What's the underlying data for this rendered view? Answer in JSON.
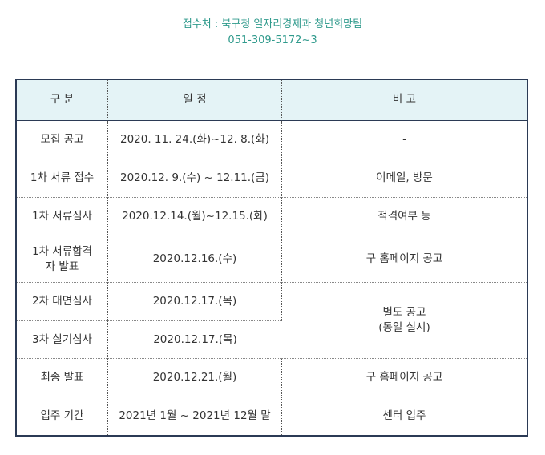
{
  "contact": {
    "office": "접수처 : 북구청 일자리경제과 청년희망팀",
    "phone": "051-309-5172~3"
  },
  "table": {
    "headers": [
      "구 분",
      "일 정",
      "비 고"
    ],
    "rows": [
      {
        "category": "모집 공고",
        "schedule": "2020. 11. 24.(화)~12. 8.(화)",
        "note": "-"
      },
      {
        "category": "1차 서류 접수",
        "schedule": "2020.12. 9.(수) ~ 12.11.(금)",
        "note": "이메일, 방문"
      },
      {
        "category": "1차 서류심사",
        "schedule": "2020.12.14.(월)~12.15.(화)",
        "note": "적격여부 등"
      },
      {
        "category_line1": "1차 서류합격",
        "category_line2": "자 발표",
        "schedule": "2020.12.16.(수)",
        "note": "구 홈페이지 공고"
      },
      {
        "category": "2차 대면심사",
        "schedule": "2020.12.17.(목)",
        "note_line1": "별도 공고",
        "note_line2": "(동일 실시)"
      },
      {
        "category": "3차 실기심사",
        "schedule": "2020.12.17.(목)"
      },
      {
        "category": "최종 발표",
        "schedule": "2020.12.21.(월)",
        "note": "구 홈페이지 공고"
      },
      {
        "category": "입주 기간",
        "schedule": "2021년 1월 ~ 2021년 12월 말",
        "note": "센터 입주"
      }
    ]
  }
}
